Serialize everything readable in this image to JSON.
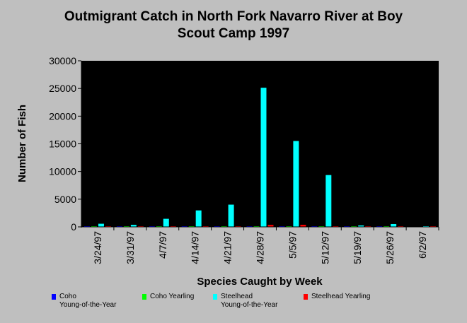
{
  "chart_data": {
    "type": "bar",
    "title_lines": [
      "Outmigrant Catch in North Fork Navarro River at Boy",
      "Scout Camp 1997"
    ],
    "xlabel": "Species Caught by Week",
    "ylabel": "Number of Fish",
    "ylim": [
      0,
      30000
    ],
    "yticks": [
      0,
      5000,
      10000,
      15000,
      20000,
      25000,
      30000
    ],
    "categories": [
      "3/24/97",
      "3/31/97",
      "4/7/97",
      "4/14/97",
      "4/21/97",
      "4/28/97",
      "5/5/97",
      "5/12/97",
      "5/19/97",
      "5/26/97",
      "6/2/97"
    ],
    "series": [
      {
        "name": "Coho Young-of-the-Year",
        "legend_lines": [
          "Coho",
          "Young-of-the-Year"
        ],
        "color": "#0000ff",
        "values": [
          7,
          12,
          41,
          8,
          2,
          73,
          37,
          38,
          5,
          11,
          0
        ]
      },
      {
        "name": "Coho Yearling",
        "legend_lines": [
          "Coho Yearling"
        ],
        "color": "#00ff00",
        "values": [
          7,
          3,
          1,
          9,
          13,
          62,
          39,
          36,
          2,
          3,
          0
        ]
      },
      {
        "name": "Steelhead Young-of-the-Year",
        "legend_lines": [
          "Steelhead",
          "Young-of-the-Year"
        ],
        "color": "#00ffff",
        "values": [
          564,
          365,
          1458,
          2976,
          4016,
          25132,
          15514,
          9361,
          259,
          515,
          9
        ]
      },
      {
        "name": "Steelhead Yearling",
        "legend_lines": [
          "Steelhead Yearling"
        ],
        "color": "#ff0000",
        "values": [
          67,
          90,
          60,
          51,
          35,
          363,
          379,
          101,
          22,
          22,
          1
        ]
      }
    ],
    "grid": false,
    "legend_position": "bottom"
  }
}
